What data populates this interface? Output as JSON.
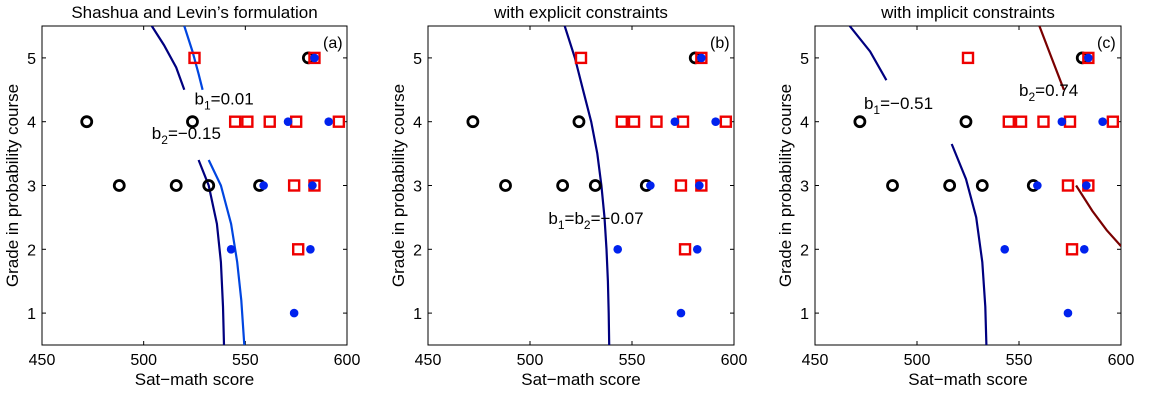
{
  "chart_data": [
    {
      "type": "scatter",
      "title": "Shashua and Levin’s formulation",
      "xlabel": "Sat−math score",
      "ylabel": "Grade in probability course",
      "xlim": [
        450,
        600
      ],
      "ylim": [
        0.5,
        5.5
      ],
      "xticks": [
        "450",
        "500",
        "550",
        "600"
      ],
      "yticks": [
        "1",
        "2",
        "3",
        "4",
        "5"
      ],
      "panel_label": "(a)",
      "annotations": [
        {
          "main": "b",
          "sub": "1",
          "rest": "=0.01",
          "x": 525,
          "y": 4.27
        },
        {
          "main": "b",
          "sub": "2",
          "rest": "=−0.15",
          "x": 504,
          "y": 3.73
        }
      ],
      "curves": [
        {
          "color": "#00007f",
          "points": [
            [
              504,
              5.5
            ],
            [
              510,
              5.2
            ],
            [
              516,
              4.85
            ],
            [
              520,
              4.5
            ]
          ]
        },
        {
          "color": "#00007f",
          "points": [
            [
              527,
              3.4
            ],
            [
              532,
              3.0
            ],
            [
              536,
              2.4
            ],
            [
              538,
              1.8
            ],
            [
              539,
              1.1
            ],
            [
              539.5,
              0.5
            ]
          ]
        },
        {
          "color": "#0045e0",
          "points": [
            [
              520,
              5.5
            ],
            [
              524,
              5.1
            ],
            [
              527,
              4.75
            ],
            [
              529,
              4.5
            ]
          ]
        },
        {
          "color": "#0045e0",
          "points": [
            [
              532,
              3.4
            ],
            [
              538,
              3.0
            ],
            [
              543,
              2.4
            ],
            [
              546,
              1.8
            ],
            [
              548,
              1.2
            ],
            [
              549.5,
              0.5
            ]
          ]
        }
      ],
      "series": [
        {
          "marker": "circle-open",
          "color": "#000000",
          "points": [
            [
              472,
              4
            ],
            [
              488,
              3
            ],
            [
              516,
              3
            ],
            [
              524,
              4
            ],
            [
              532,
              3
            ],
            [
              557,
              3
            ],
            [
              581,
              5
            ]
          ]
        },
        {
          "marker": "square-open",
          "color": "#ee0000",
          "points": [
            [
              525,
              5
            ],
            [
              545,
              4
            ],
            [
              551,
              4
            ],
            [
              562,
              4
            ],
            [
              575,
              4
            ],
            [
              574,
              3
            ],
            [
              584,
              3
            ],
            [
              576,
              2
            ],
            [
              584,
              5
            ],
            [
              596,
              4
            ]
          ]
        },
        {
          "marker": "dot",
          "color": "#0022ee",
          "points": [
            [
              543,
              2
            ],
            [
              559,
              3
            ],
            [
              571,
              4
            ],
            [
              574,
              1
            ],
            [
              582,
              2
            ],
            [
              583,
              3
            ],
            [
              584,
              5
            ],
            [
              591,
              4
            ]
          ]
        }
      ]
    },
    {
      "type": "scatter",
      "title": "with explicit constraints",
      "xlabel": "Sat−math score",
      "ylabel": "Grade in probability course",
      "xlim": [
        450,
        600
      ],
      "ylim": [
        0.5,
        5.5
      ],
      "xticks": [
        "450",
        "500",
        "550",
        "600"
      ],
      "yticks": [
        "1",
        "2",
        "3",
        "4",
        "5"
      ],
      "panel_label": "(b)",
      "annotations": [
        {
          "main": "b",
          "sub": "1",
          "rest": "=b",
          "sub2": "2",
          "rest2": "=−0.07",
          "x": 509,
          "y": 2.4
        }
      ],
      "curves": [
        {
          "color": "#00007f",
          "points": [
            [
              517,
              5.5
            ],
            [
              522,
              5.0
            ],
            [
              526,
              4.5
            ],
            [
              530,
              4.0
            ],
            [
              533,
              3.5
            ],
            [
              535,
              3.0
            ],
            [
              536.5,
              2.5
            ],
            [
              537.5,
              2.0
            ],
            [
              538.2,
              1.5
            ],
            [
              538.6,
              1.0
            ],
            [
              538.8,
              0.5
            ]
          ]
        }
      ],
      "series": [
        {
          "marker": "circle-open",
          "color": "#000000",
          "points": [
            [
              472,
              4
            ],
            [
              488,
              3
            ],
            [
              516,
              3
            ],
            [
              524,
              4
            ],
            [
              532,
              3
            ],
            [
              557,
              3
            ],
            [
              581,
              5
            ]
          ]
        },
        {
          "marker": "square-open",
          "color": "#ee0000",
          "points": [
            [
              525,
              5
            ],
            [
              545,
              4
            ],
            [
              551,
              4
            ],
            [
              562,
              4
            ],
            [
              575,
              4
            ],
            [
              574,
              3
            ],
            [
              584,
              3
            ],
            [
              576,
              2
            ],
            [
              584,
              5
            ],
            [
              596,
              4
            ]
          ]
        },
        {
          "marker": "dot",
          "color": "#0022ee",
          "points": [
            [
              543,
              2
            ],
            [
              559,
              3
            ],
            [
              571,
              4
            ],
            [
              574,
              1
            ],
            [
              582,
              2
            ],
            [
              583,
              3
            ],
            [
              584,
              5
            ],
            [
              591,
              4
            ]
          ]
        }
      ]
    },
    {
      "type": "scatter",
      "title": "with implicit constraints",
      "xlabel": "Sat−math score",
      "ylabel": "Grade in probability course",
      "xlim": [
        450,
        600
      ],
      "ylim": [
        0.5,
        5.5
      ],
      "xticks": [
        "450",
        "500",
        "550",
        "600"
      ],
      "yticks": [
        "1",
        "2",
        "3",
        "4",
        "5"
      ],
      "panel_label": "(c)",
      "annotations": [
        {
          "main": "b",
          "sub": "1",
          "rest": "=−0.51",
          "x": 474,
          "y": 4.2
        },
        {
          "main": "b",
          "sub": "2",
          "rest": "=0.74",
          "x": 550,
          "y": 4.4
        }
      ],
      "curves": [
        {
          "color": "#00007f",
          "points": [
            [
              467,
              5.5
            ],
            [
              477,
              5.1
            ],
            [
              485,
              4.65
            ]
          ]
        },
        {
          "color": "#00007f",
          "points": [
            [
              517,
              3.65
            ],
            [
              524,
              3.1
            ],
            [
              529,
              2.5
            ],
            [
              532,
              1.8
            ],
            [
              533.5,
              1.1
            ],
            [
              534,
              0.5
            ]
          ]
        },
        {
          "color": "#7a0000",
          "points": [
            [
              560,
              5.5
            ],
            [
              566,
              5.0
            ],
            [
              572,
              4.5
            ]
          ]
        },
        {
          "color": "#7a0000",
          "points": [
            [
              578,
              3.0
            ],
            [
              586,
              2.6
            ],
            [
              593,
              2.3
            ],
            [
              600,
              2.05
            ]
          ]
        }
      ],
      "series": [
        {
          "marker": "circle-open",
          "color": "#000000",
          "points": [
            [
              472,
              4
            ],
            [
              488,
              3
            ],
            [
              516,
              3
            ],
            [
              524,
              4
            ],
            [
              532,
              3
            ],
            [
              557,
              3
            ],
            [
              581,
              5
            ]
          ]
        },
        {
          "marker": "square-open",
          "color": "#ee0000",
          "points": [
            [
              525,
              5
            ],
            [
              545,
              4
            ],
            [
              551,
              4
            ],
            [
              562,
              4
            ],
            [
              575,
              4
            ],
            [
              574,
              3
            ],
            [
              584,
              3
            ],
            [
              576,
              2
            ],
            [
              584,
              5
            ],
            [
              596,
              4
            ]
          ]
        },
        {
          "marker": "dot",
          "color": "#0022ee",
          "points": [
            [
              543,
              2
            ],
            [
              559,
              3
            ],
            [
              571,
              4
            ],
            [
              574,
              1
            ],
            [
              582,
              2
            ],
            [
              583,
              3
            ],
            [
              584,
              5
            ],
            [
              591,
              4
            ]
          ]
        }
      ]
    }
  ]
}
